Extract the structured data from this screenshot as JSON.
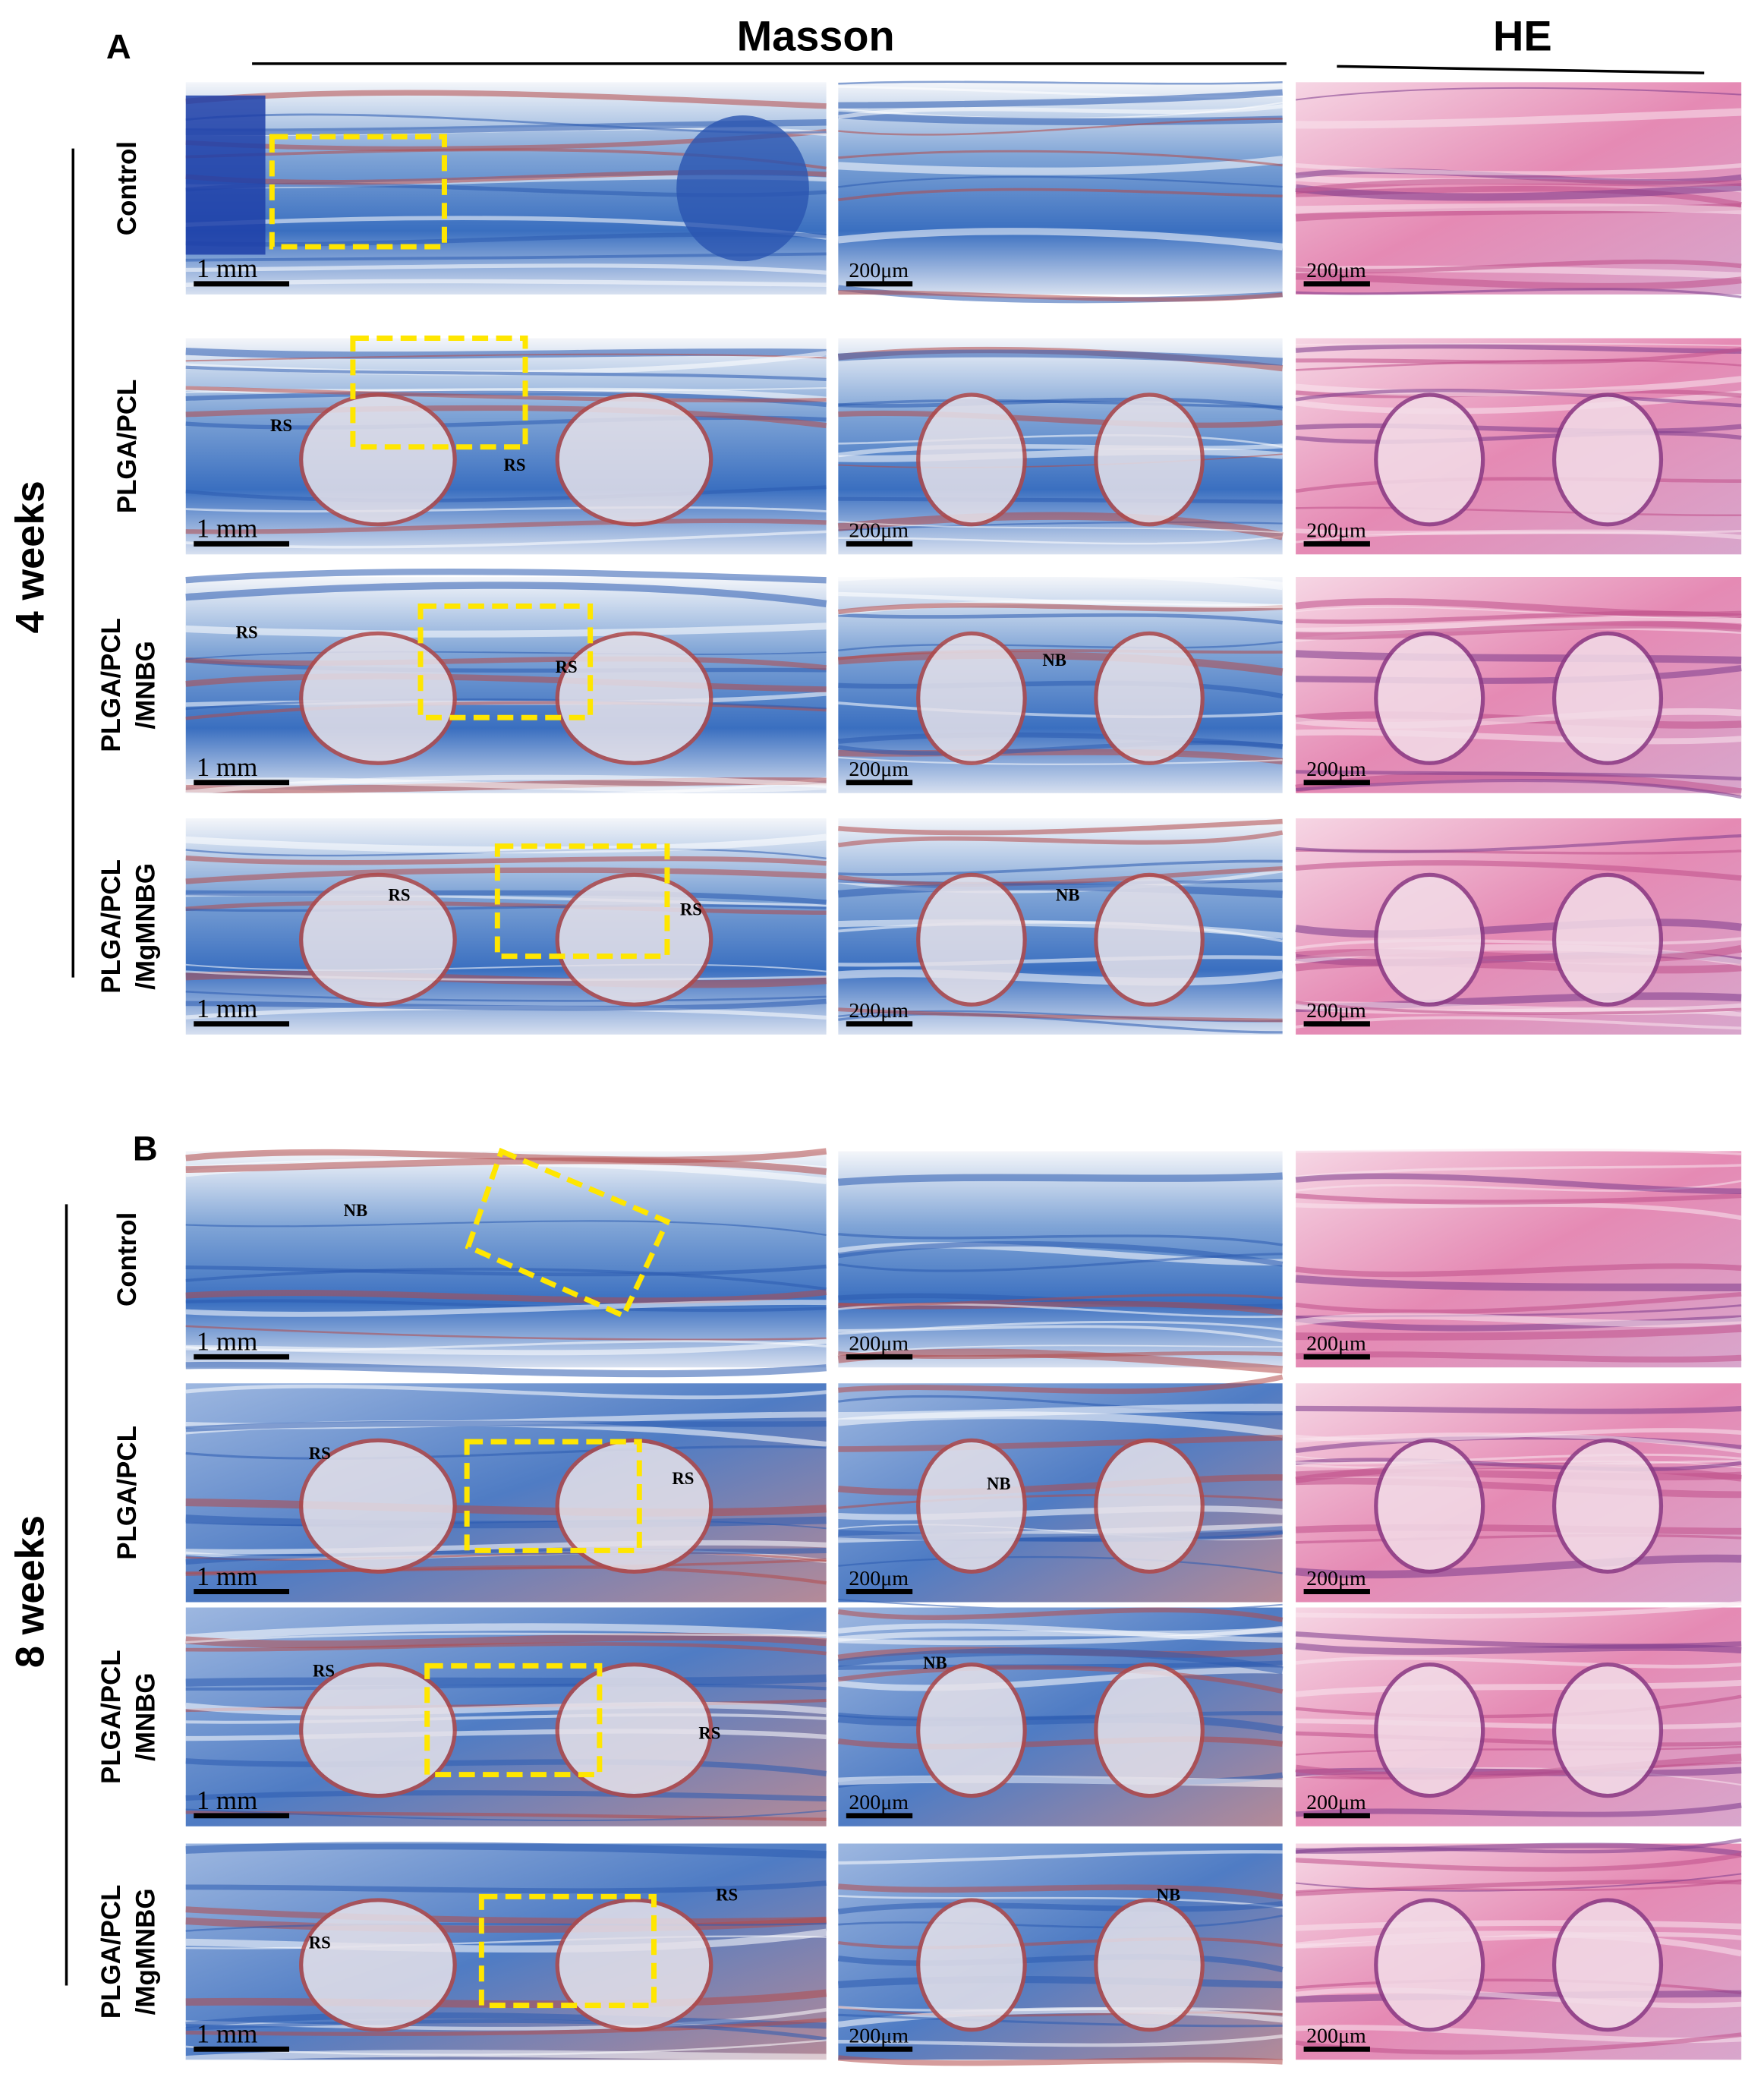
{
  "column_headers": {
    "masson": "Masson",
    "he": "HE"
  },
  "scale_bars": {
    "overview": "1 mm",
    "detail": "200μm"
  },
  "panels": [
    {
      "label": "A",
      "time": "4 weeks",
      "rows": [
        {
          "label": [
            "Control"
          ],
          "annotations": []
        },
        {
          "label": [
            "PLGA/PCL"
          ],
          "annotations": [
            "RS",
            "RS"
          ]
        },
        {
          "label": [
            "PLGA/PCL",
            "/MNBG"
          ],
          "annotations": [
            "RS",
            "RS",
            "NB"
          ]
        },
        {
          "label": [
            "PLGA/PCL",
            "/MgMNBG"
          ],
          "annotations": [
            "RS",
            "RS",
            "NB"
          ]
        }
      ]
    },
    {
      "label": "B",
      "time": "8 weeks",
      "rows": [
        {
          "label": [
            "Control"
          ],
          "annotations": [
            "NB"
          ]
        },
        {
          "label": [
            "PLGA/PCL"
          ],
          "annotations": [
            "RS",
            "RS",
            "NB"
          ]
        },
        {
          "label": [
            "PLGA/PCL",
            "/MNBG"
          ],
          "annotations": [
            "RS",
            "RS",
            "NB"
          ]
        },
        {
          "label": [
            "PLGA/PCL",
            "/MgMNBG"
          ],
          "annotations": [
            "RS",
            "RS",
            "NB"
          ]
        }
      ]
    }
  ]
}
